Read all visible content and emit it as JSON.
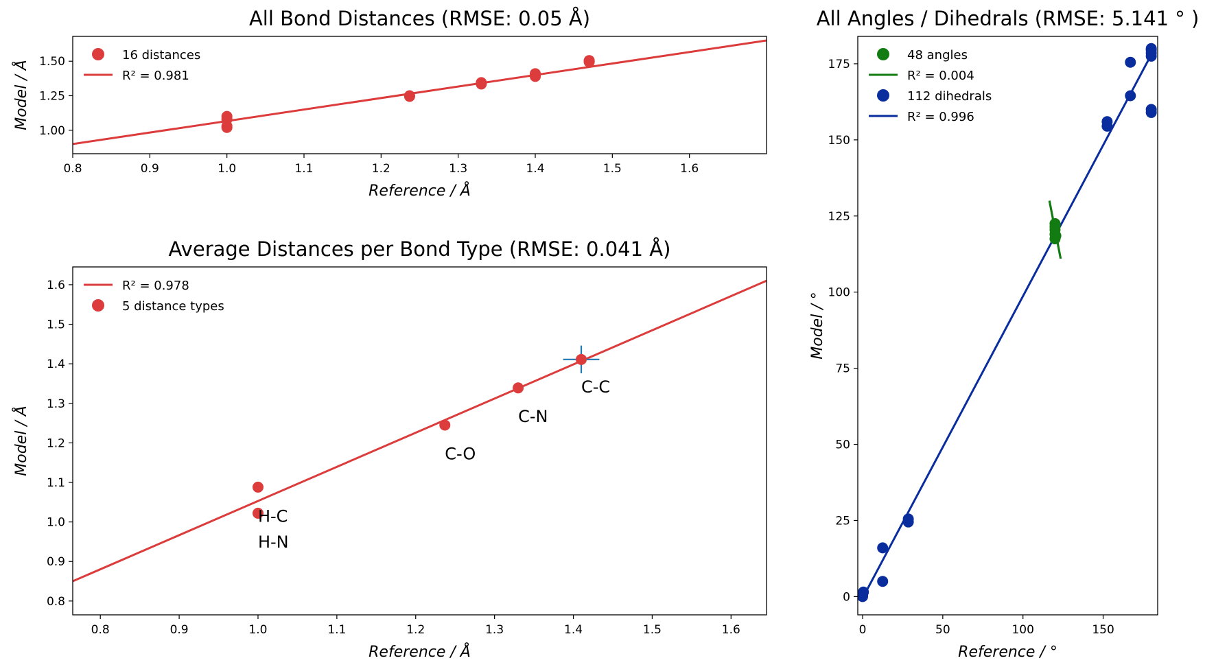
{
  "chart_data": [
    {
      "id": "all-bond-distances",
      "type": "scatter",
      "title": "All Bond Distances (RMSE: 0.05 Å)",
      "xlabel": "Reference / Å",
      "ylabel": "Model / Å",
      "xlim": [
        0.8,
        1.7
      ],
      "ylim": [
        0.83,
        1.68
      ],
      "xticks": [
        0.8,
        0.9,
        1.0,
        1.1,
        1.2,
        1.3,
        1.4,
        1.5,
        1.6
      ],
      "xtick_labels": [
        "0.8",
        "0.9",
        "1.0",
        "1.1",
        "1.2",
        "1.3",
        "1.4",
        "1.5",
        "1.6"
      ],
      "yticks": [
        1.0,
        1.25,
        1.5
      ],
      "ytick_labels": [
        "1.00",
        "1.25",
        "1.50"
      ],
      "grid": false,
      "legend_position": "top-left",
      "colors": {
        "points": "#dc3c3c",
        "fit": "#dc3c3c"
      },
      "legend": [
        {
          "label": "16 distances",
          "marker": "dot",
          "color": "#dc3c3c"
        },
        {
          "label": "R² = 0.981",
          "marker": "line",
          "color": "#dc3c3c"
        }
      ],
      "fit_line": {
        "x": [
          0.8,
          1.7
        ],
        "y": [
          0.9,
          1.65
        ]
      },
      "points": [
        {
          "x": 1.0,
          "y": 1.02
        },
        {
          "x": 1.0,
          "y": 1.03
        },
        {
          "x": 1.0,
          "y": 1.08
        },
        {
          "x": 1.0,
          "y": 1.1
        },
        {
          "x": 1.237,
          "y": 1.245
        },
        {
          "x": 1.237,
          "y": 1.25
        },
        {
          "x": 1.33,
          "y": 1.34
        },
        {
          "x": 1.33,
          "y": 1.345
        },
        {
          "x": 1.33,
          "y": 1.335
        },
        {
          "x": 1.4,
          "y": 1.39
        },
        {
          "x": 1.4,
          "y": 1.4
        },
        {
          "x": 1.4,
          "y": 1.41
        },
        {
          "x": 1.4,
          "y": 1.395
        },
        {
          "x": 1.47,
          "y": 1.5
        },
        {
          "x": 1.47,
          "y": 1.505
        },
        {
          "x": 1.47,
          "y": 1.495
        }
      ]
    },
    {
      "id": "average-distances",
      "type": "scatter",
      "title": "Average Distances per Bond Type (RMSE: 0.041 Å)",
      "xlabel": "Reference / Å",
      "ylabel": "Model / Å",
      "xlim": [
        0.765,
        1.645
      ],
      "ylim": [
        0.765,
        1.645
      ],
      "xticks": [
        0.8,
        0.9,
        1.0,
        1.1,
        1.2,
        1.3,
        1.4,
        1.5,
        1.6
      ],
      "xtick_labels": [
        "0.8",
        "0.9",
        "1.0",
        "1.1",
        "1.2",
        "1.3",
        "1.4",
        "1.5",
        "1.6"
      ],
      "yticks": [
        0.8,
        0.9,
        1.0,
        1.1,
        1.2,
        1.3,
        1.4,
        1.5,
        1.6
      ],
      "ytick_labels": [
        "0.8",
        "0.9",
        "1.0",
        "1.1",
        "1.2",
        "1.3",
        "1.4",
        "1.5",
        "1.6"
      ],
      "grid": false,
      "legend_position": "top-left",
      "colors": {
        "points": "#dc3c3c",
        "fit": "#dc3c3c",
        "errorbar": "#1f77b4"
      },
      "legend": [
        {
          "label": "R² = 0.978",
          "marker": "line",
          "color": "#dc3c3c"
        },
        {
          "label": "5 distance types",
          "marker": "dot-errorbar",
          "color": "#dc3c3c"
        }
      ],
      "fit_line": {
        "x": [
          0.765,
          1.645
        ],
        "y": [
          0.85,
          1.61
        ]
      },
      "points": [
        {
          "x": 1.0,
          "y": 1.088
        },
        {
          "x": 1.0,
          "y": 1.022
        },
        {
          "x": 1.237,
          "y": 1.245
        },
        {
          "x": 1.33,
          "y": 1.339
        },
        {
          "x": 1.41,
          "y": 1.411,
          "xerr": 0.023,
          "yerr": 0.035
        }
      ],
      "annotations": [
        {
          "text": "H-C",
          "x": 1.0,
          "y": 1.0
        },
        {
          "text": "H-N",
          "x": 1.0,
          "y": 0.935
        },
        {
          "text": "C-O",
          "x": 1.237,
          "y": 1.158
        },
        {
          "text": "C-N",
          "x": 1.33,
          "y": 1.253
        },
        {
          "text": "C-C",
          "x": 1.41,
          "y": 1.327
        }
      ]
    },
    {
      "id": "all-angles-dihedrals",
      "type": "scatter",
      "title": "All Angles / Dihedrals (RMSE: 5.141 ° )",
      "xlabel": "Reference / °",
      "ylabel": "Model / °",
      "xlim": [
        -3,
        184
      ],
      "ylim": [
        -6,
        184
      ],
      "xticks": [
        0,
        50,
        100,
        150
      ],
      "xtick_labels": [
        "0",
        "50",
        "100",
        "150"
      ],
      "yticks": [
        0,
        25,
        50,
        75,
        100,
        125,
        150,
        175
      ],
      "ytick_labels": [
        "0",
        "25",
        "50",
        "75",
        "100",
        "125",
        "150",
        "175"
      ],
      "grid": false,
      "legend_position": "top-left",
      "colors": {
        "angles": "#127c12",
        "dihedrals": "#0a2d9e"
      },
      "legend": [
        {
          "label": "48 angles",
          "marker": "dot",
          "color": "#127c12"
        },
        {
          "label": "R² = 0.004",
          "marker": "line",
          "color": "#127c12"
        },
        {
          "label": "112 dihedrals",
          "marker": "dot",
          "color": "#0a2d9e"
        },
        {
          "label": "R² = 0.996",
          "marker": "line",
          "color": "#0a2d9e"
        }
      ],
      "series": [
        {
          "kind": "angles",
          "color": "#127c12",
          "fit_line": {
            "x": [
              116.5,
              123.5
            ],
            "y": [
              130,
              111
            ]
          },
          "points": [
            {
              "x": 120,
              "y": 117.5
            },
            {
              "x": 120,
              "y": 119
            },
            {
              "x": 120,
              "y": 120.5
            },
            {
              "x": 120,
              "y": 121.5
            },
            {
              "x": 120,
              "y": 122.5
            },
            {
              "x": 120.5,
              "y": 118.5
            }
          ]
        },
        {
          "kind": "dihedrals",
          "color": "#0a2d9e",
          "fit_line": {
            "x": [
              0,
              180
            ],
            "y": [
              -0.5,
              178
            ]
          },
          "points": [
            {
              "x": 0,
              "y": 0
            },
            {
              "x": 0,
              "y": 1
            },
            {
              "x": 0.5,
              "y": 1.5
            },
            {
              "x": 0,
              "y": 0.5
            },
            {
              "x": 12.5,
              "y": 5
            },
            {
              "x": 12.5,
              "y": 16
            },
            {
              "x": 28.5,
              "y": 24.5
            },
            {
              "x": 28.5,
              "y": 25.5
            },
            {
              "x": 152.5,
              "y": 154.5
            },
            {
              "x": 152.5,
              "y": 156
            },
            {
              "x": 167,
              "y": 164.5
            },
            {
              "x": 167,
              "y": 175.5
            },
            {
              "x": 180,
              "y": 159
            },
            {
              "x": 180,
              "y": 160
            },
            {
              "x": 180,
              "y": 177.5
            },
            {
              "x": 180,
              "y": 178.5
            },
            {
              "x": 180,
              "y": 179.5
            },
            {
              "x": 180,
              "y": 180
            }
          ]
        }
      ]
    }
  ]
}
